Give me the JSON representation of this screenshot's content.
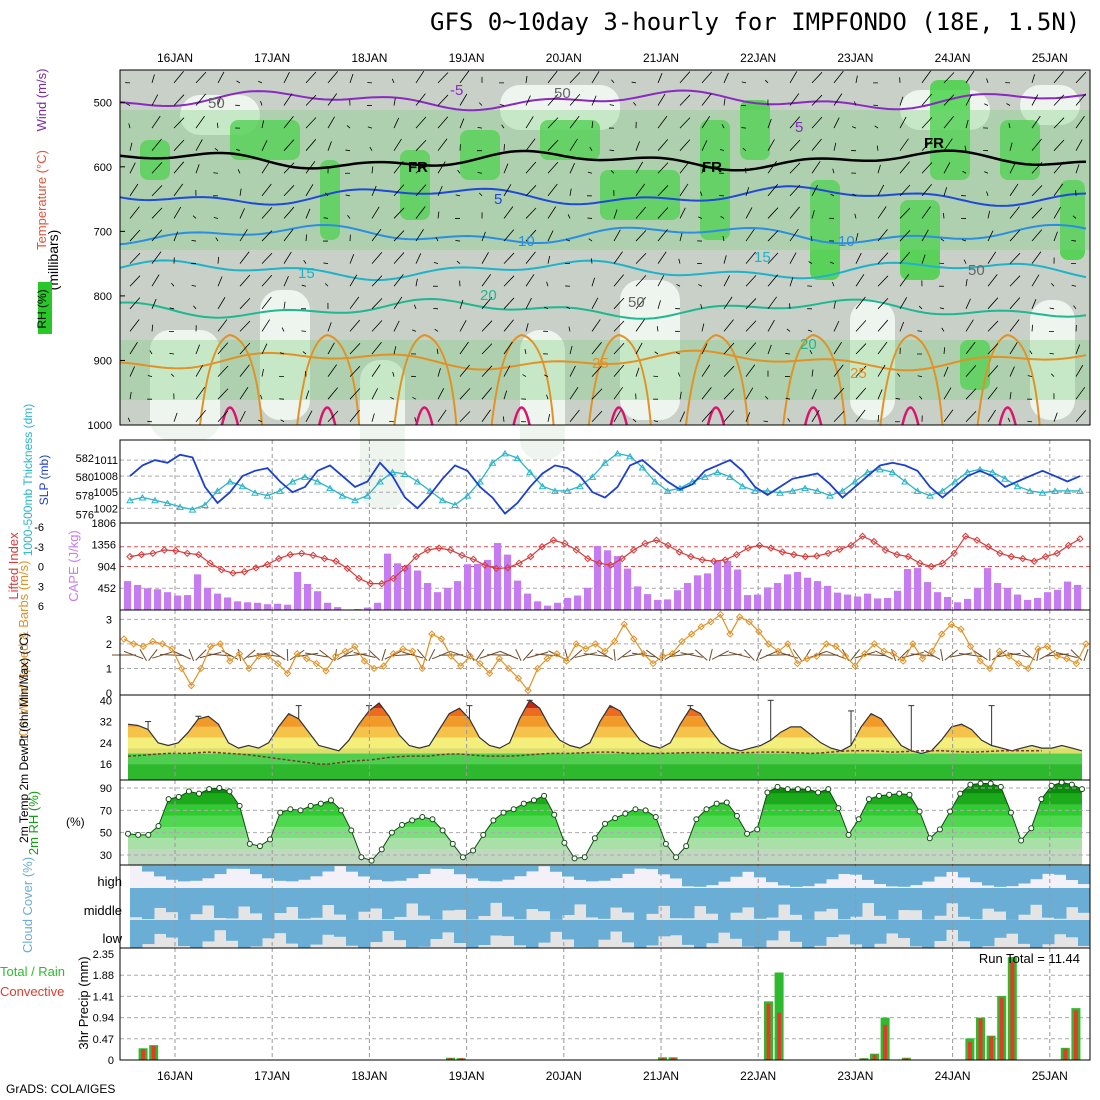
{
  "title": "GFS 0~10day 3-hourly for IMPFONDO (18E, 1.5N)",
  "credit": "GrADS: COLA/IGES",
  "colors": {
    "wind_label": "#7a2aa3",
    "temp_label": "#e0543a",
    "rh_label_bg": "#28c828",
    "slp": "#1b3fcf",
    "thickness": "#2ab5c8",
    "lifted": "#d83a3a",
    "cape": "#c57cf0",
    "wind10": "#e09226",
    "barb": "#6b4a2a",
    "rh2m": "#12a012",
    "cloud": "#6aaed6",
    "precip_total": "#2dbb2d",
    "precip_conv": "#e23b2b"
  },
  "chart_data": {
    "dates": [
      "16JAN",
      "17JAN",
      "18JAN",
      "19JAN",
      "20JAN",
      "21JAN",
      "22JAN",
      "23JAN",
      "24JAN",
      "25JAN"
    ],
    "cross_section": {
      "type": "heatmap",
      "ylabel": "(millibars)",
      "title_parts": [
        "RH (%)",
        "Temperature (°C)",
        "Wind (m/s)"
      ],
      "yticks": [
        500,
        600,
        700,
        800,
        900,
        1000
      ],
      "ylim": [
        450,
        1000
      ],
      "temperature_contours": [
        {
          "label": "-5",
          "pressure": 497
        },
        {
          "label": "FR",
          "pressure": 590
        },
        {
          "label": "5",
          "pressure": 645
        },
        {
          "label": "10",
          "pressure": 705
        },
        {
          "label": "15",
          "pressure": 760
        },
        {
          "label": "20",
          "pressure": 820
        },
        {
          "label": "25",
          "pressure": 900
        }
      ],
      "contour_labels": [
        "-5",
        "5",
        "FR",
        "FR",
        "FR",
        "5",
        "10",
        "10",
        "15",
        "15",
        "20",
        "20",
        "25",
        "25",
        "50",
        "50",
        "50",
        "50"
      ]
    },
    "slp_thickness": {
      "type": "line",
      "ylabel_left": "1000-500mb Thickness (dm)",
      "ylabel_right": "SLP (mb)",
      "yticks_left": [
        576,
        578,
        580,
        582
      ],
      "yticks_right": [
        1002,
        1005,
        1008,
        1011
      ],
      "slp": [
        1008,
        1010,
        1011,
        1010.5,
        1012,
        1011.5,
        1006,
        1003,
        1005,
        1008,
        1009,
        1009.5,
        1007,
        1005,
        1006,
        1009,
        1010,
        1008,
        1006,
        1007,
        1010.5,
        1008,
        1004,
        1002,
        1004.5,
        1007.5,
        1010,
        1009,
        1006,
        1004,
        1001,
        1003,
        1006,
        1008.5,
        1010,
        1009.5,
        1008,
        1005,
        1004,
        1006,
        1010,
        1011,
        1009,
        1007,
        1005.5,
        1006.5,
        1009,
        1010,
        1011,
        1009,
        1006,
        1004.5,
        1006,
        1007.5,
        1008,
        1008.5,
        1006.5,
        1004,
        1006,
        1008,
        1010,
        1010.5,
        1010,
        1009,
        1006,
        1004,
        1006,
        1008,
        1009,
        1008,
        1006,
        1007,
        1008,
        1009,
        1008,
        1007,
        1008
      ],
      "thickness": [
        577.5,
        577.8,
        577.5,
        577.2,
        576.8,
        576.5,
        577,
        578.5,
        579.5,
        579,
        578.3,
        578,
        578.5,
        579.5,
        580,
        579.5,
        578.8,
        578,
        577.5,
        578,
        579.5,
        580.5,
        580.3,
        579.5,
        578.5,
        577.5,
        577,
        578,
        579.5,
        581.5,
        582.5,
        582,
        580.5,
        579,
        578.5,
        578.5,
        579,
        580,
        581.5,
        582.5,
        582.2,
        581,
        579.5,
        578.5,
        578.8,
        579.5,
        580,
        580.5,
        580,
        579,
        578.5,
        578.5,
        578.3,
        578.5,
        578.8,
        578.5,
        578,
        578.5,
        579.5,
        580.5,
        580.8,
        580.5,
        579.5,
        578.5,
        578,
        578.5,
        579.5,
        580.5,
        580.8,
        580.5,
        579.8,
        579,
        578.5,
        578.3,
        578.5,
        578.5,
        578.5
      ]
    },
    "lifted_cape": {
      "type": "bar",
      "ylabel_left": "Lifted Index",
      "ylabel_right": "CAPE (J/kg)",
      "yticks_left": [
        "-6",
        "-3",
        "0",
        "3",
        "6"
      ],
      "yticks_right": [
        452,
        904,
        1356,
        1806
      ],
      "lifted": [
        -1.5,
        -1.8,
        -2.0,
        -2.5,
        -2.4,
        -2.0,
        -1.8,
        -0.5,
        0.5,
        1.0,
        0.8,
        0.2,
        -0.3,
        -1.2,
        -1.8,
        -2.0,
        -1.7,
        -1.2,
        -0.8,
        0.3,
        1.8,
        2.6,
        2.6,
        1.8,
        0.3,
        -1.5,
        -2.5,
        -2.8,
        -2.5,
        -1.7,
        -1.1,
        -0.2,
        0.3,
        0.2,
        -0.5,
        -1.5,
        -3.0,
        -4.0,
        -3.5,
        -2.5,
        -1.2,
        -0.5,
        -0.2,
        -1.2,
        -2.5,
        -3.5,
        -4.0,
        -3.2,
        -2.2,
        -1.5,
        -1.0,
        -0.8,
        -1.0,
        -1.8,
        -2.8,
        -3.2,
        -2.8,
        -2.2,
        -1.8,
        -1.5,
        -1.6,
        -2.0,
        -2.6,
        -3.2,
        -4.6,
        -3.8,
        -2.5,
        -1.8,
        -1.5,
        -0.5,
        0.0,
        -0.5,
        -2.0,
        -4.6,
        -4.0,
        -3.0,
        -2.0,
        -1.5,
        -1.2,
        -0.8,
        -1.5,
        -2.0,
        -3.2,
        -4.2
      ],
      "cape": [
        600,
        520,
        450,
        430,
        370,
        300,
        310,
        740,
        460,
        340,
        260,
        180,
        160,
        150,
        120,
        130,
        110,
        790,
        540,
        390,
        150,
        60,
        10,
        20,
        50,
        150,
        1170,
        970,
        940,
        820,
        560,
        370,
        460,
        600,
        950,
        960,
        1040,
        1390,
        1150,
        610,
        340,
        180,
        90,
        150,
        250,
        300,
        460,
        1330,
        1240,
        1120,
        860,
        490,
        330,
        210,
        220,
        410,
        560,
        720,
        760,
        1020,
        1020,
        840,
        310,
        320,
        470,
        560,
        740,
        790,
        670,
        600,
        500,
        360,
        320,
        280,
        340,
        240,
        250,
        400,
        850,
        870,
        580,
        370,
        270,
        160,
        230,
        460,
        870,
        560,
        460,
        320,
        210,
        250,
        370,
        420,
        590,
        520
      ]
    },
    "wind10m": {
      "type": "line",
      "ylabel": "10m Wind Speed & Barbs (m/s)",
      "yticks": [
        0,
        1,
        2,
        3
      ],
      "values": [
        2.2,
        2.0,
        1.9,
        2.1,
        2.0,
        1.8,
        1.0,
        0.3,
        1.0,
        1.9,
        2.0,
        1.3,
        1.6,
        1.0,
        1.5,
        1.5,
        1.2,
        0.8,
        1.6,
        1.4,
        1.2,
        0.9,
        1.5,
        1.7,
        1.9,
        1.3,
        1.0,
        1.1,
        1.6,
        1.8,
        1.7,
        1.0,
        2.4,
        2.2,
        1.5,
        1.1,
        1.5,
        1.2,
        0.8,
        1.4,
        1.0,
        0.6,
        0.1,
        1.0,
        1.4,
        1.6,
        1.3,
        2.0,
        1.8,
        2.0,
        1.7,
        2.1,
        2.8,
        2.2,
        1.6,
        1.2,
        1.5,
        1.6,
        2.1,
        2.4,
        2.7,
        2.9,
        3.2,
        2.4,
        3.1,
        2.9,
        2.5,
        2.0,
        1.7,
        2.0,
        1.2,
        1.4,
        1.5,
        2.0,
        1.9,
        1.5,
        1.1,
        1.6,
        2.0,
        1.7,
        1.6,
        1.3,
        2.0,
        1.4,
        1.7,
        2.4,
        2.8,
        2.6,
        1.9,
        1.3,
        1.0,
        1.7,
        1.5,
        1.2,
        1.0,
        1.8,
        1.9,
        1.5,
        1.4,
        1.2,
        2.0
      ]
    },
    "temp2m": {
      "type": "area",
      "ylabel": "2m Temp 2m DewPt (6hr Min/Max) (°C)",
      "yticks": [
        16,
        24,
        32,
        40
      ],
      "temp": [
        31,
        30.5,
        29,
        24,
        23,
        24,
        28,
        33,
        34,
        31,
        24,
        22,
        23,
        22,
        24,
        30,
        35,
        33,
        28,
        23,
        22,
        21,
        25,
        31,
        36,
        39,
        34,
        27,
        23,
        22,
        23,
        29,
        35,
        37,
        33,
        26,
        23,
        22,
        24,
        33,
        40,
        37,
        30,
        25,
        23,
        22,
        24,
        32,
        38,
        36,
        30,
        25,
        23,
        22,
        24,
        31,
        37,
        35,
        29,
        24,
        22,
        21,
        22,
        23,
        25,
        28,
        30,
        30,
        27,
        24,
        22,
        21,
        23,
        30,
        35,
        33,
        28,
        23,
        21,
        20,
        21,
        25,
        30,
        31,
        29,
        25,
        23,
        22,
        21,
        22,
        23,
        22,
        22,
        23,
        22,
        21
      ],
      "dewpt": [
        19,
        19.2,
        19.5,
        19.8,
        20,
        20,
        20,
        20.3,
        20.5,
        20.3,
        20,
        19.8,
        19.5,
        19,
        18.5,
        18,
        17.5,
        17,
        16.5,
        16,
        16,
        16.5,
        17,
        17.3,
        17.5,
        18,
        18.5,
        18.8,
        19,
        19,
        19,
        19.5,
        19.8,
        19.8,
        19.5,
        19.2,
        19,
        19,
        19,
        19.2,
        19.5,
        19.8,
        20,
        20,
        20,
        20.2,
        20.3,
        20.5,
        20.5,
        20.3,
        20,
        20,
        20,
        20,
        20.1,
        20.2,
        20.3,
        20.3,
        20.3,
        20.2,
        20.2,
        20.3,
        20.3,
        20.5,
        20.5,
        20.5,
        20.3,
        20.2,
        20,
        20.2,
        20.5,
        20.8,
        21,
        21,
        21,
        20.8,
        20.5,
        20.6,
        20.8,
        21,
        21,
        21,
        20.8,
        20.6,
        20.5,
        20.6,
        20.8,
        21,
        21,
        21,
        21,
        21
      ],
      "max": [
        null,
        null,
        32,
        null,
        null,
        null,
        null,
        34,
        null,
        null,
        null,
        null,
        null,
        null,
        null,
        null,
        null,
        38,
        null,
        null,
        null,
        null,
        null,
        null,
        38,
        null,
        null,
        null,
        null,
        null,
        null,
        null,
        null,
        null,
        38,
        null,
        null,
        null,
        null,
        null,
        40,
        null,
        null,
        null,
        null,
        null,
        null,
        null,
        null,
        null,
        null,
        null,
        null,
        null,
        null,
        null,
        38,
        null,
        null,
        null,
        null,
        null,
        null,
        null,
        40,
        null,
        null,
        null,
        null,
        null,
        null,
        null,
        36,
        null,
        null,
        null,
        null,
        null,
        38,
        null,
        null,
        null,
        null,
        null,
        null,
        null,
        38,
        null,
        null,
        null,
        null,
        null
      ]
    },
    "rh2m": {
      "type": "area",
      "ylabel": "2m RH (%)",
      "yticks": [
        30,
        50,
        70,
        90
      ],
      "values": [
        49,
        48,
        48,
        56,
        80,
        82,
        87,
        85,
        89,
        90,
        87,
        74,
        40,
        38,
        44,
        68,
        71,
        70,
        74,
        76,
        79,
        70,
        52,
        28,
        25,
        35,
        50,
        57,
        61,
        64,
        62,
        52,
        40,
        28,
        34,
        48,
        61,
        68,
        71,
        76,
        79,
        83,
        66,
        41,
        27,
        28,
        45,
        58,
        63,
        67,
        71,
        70,
        64,
        40,
        28,
        38,
        62,
        71,
        76,
        77,
        65,
        49,
        53,
        86,
        91,
        89,
        89,
        89,
        86,
        89,
        72,
        48,
        62,
        80,
        83,
        84,
        85,
        84,
        69,
        45,
        53,
        69,
        85,
        93,
        94,
        94,
        91,
        68,
        43,
        54,
        80,
        92,
        95,
        93,
        89
      ]
    },
    "cloud": {
      "type": "heatmap",
      "ylabel": "Cloud Cover (%)",
      "levels": [
        "high",
        "middle",
        "low"
      ]
    },
    "precip": {
      "type": "bar",
      "ylabel": "3hr Precip (mm)",
      "legend": [
        "Total / Rain",
        "Convective"
      ],
      "yticks": [
        "0",
        "0.47",
        "0.94",
        "1.41",
        "1.88",
        "2.35"
      ],
      "run_total_label": "Run Total =",
      "run_total": "11.44",
      "bars": [
        {
          "t": 1,
          "total": 0.26,
          "conv": 0.24
        },
        {
          "t": 2,
          "total": 0.33,
          "conv": 0.31
        },
        {
          "t": 30,
          "total": 0.05,
          "conv": 0.04
        },
        {
          "t": 31,
          "total": 0.04,
          "conv": 0.04
        },
        {
          "t": 50,
          "total": 0.06,
          "conv": 0.05
        },
        {
          "t": 51,
          "total": 0.06,
          "conv": 0.05
        },
        {
          "t": 60,
          "total": 1.3,
          "conv": 1.25
        },
        {
          "t": 61,
          "total": 1.94,
          "conv": 1.05
        },
        {
          "t": 69,
          "total": 0.04,
          "conv": 0.03
        },
        {
          "t": 70,
          "total": 0.14,
          "conv": 0.12
        },
        {
          "t": 71,
          "total": 0.94,
          "conv": 0.78
        },
        {
          "t": 73,
          "total": 0.05,
          "conv": 0.04
        },
        {
          "t": 79,
          "total": 0.48,
          "conv": 0.4
        },
        {
          "t": 80,
          "total": 0.94,
          "conv": 0.92
        },
        {
          "t": 81,
          "total": 0.54,
          "conv": 0.52
        },
        {
          "t": 82,
          "total": 1.42,
          "conv": 1.38
        },
        {
          "t": 83,
          "total": 2.28,
          "conv": 2.2
        },
        {
          "t": 88,
          "total": 0.27,
          "conv": 0.25
        },
        {
          "t": 89,
          "total": 1.15,
          "conv": 1.1
        }
      ]
    }
  }
}
